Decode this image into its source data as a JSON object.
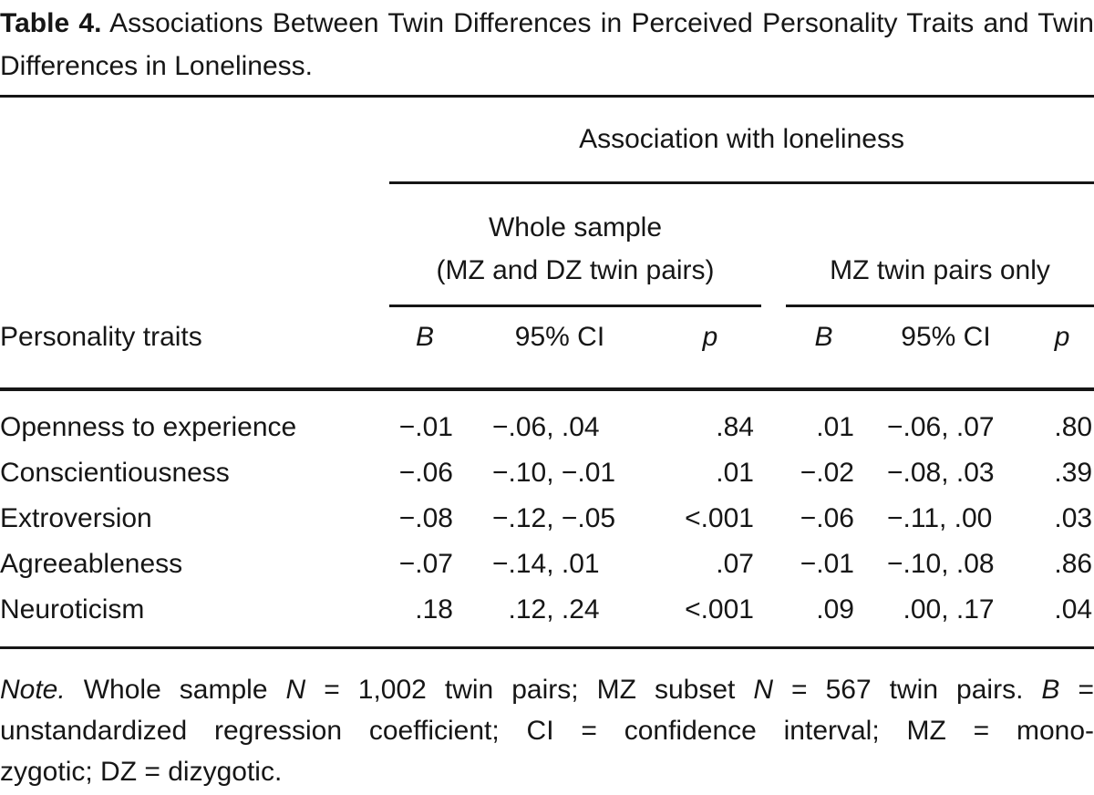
{
  "title": {
    "label": "Table 4.",
    "text": " Associations Between Twin Differences in Perceived Personality Traits and Twin Differences in Loneliness."
  },
  "table": {
    "spanner": "Association with loneliness",
    "groups": {
      "whole_line1": "Whole sample",
      "whole_line2": "(MZ and DZ twin pairs)",
      "mz": "MZ twin pairs only"
    },
    "columns": {
      "trait": "Personality traits",
      "b": "B",
      "ci": "95% CI",
      "p": "p"
    },
    "rows": [
      {
        "trait": "Openness to experience",
        "whole_b": "−.01",
        "whole_ci": "−.06, .04",
        "whole_p": ".84",
        "mz_b": ".01",
        "mz_ci": "−.06, .07",
        "mz_p": ".80"
      },
      {
        "trait": "Conscientiousness",
        "whole_b": "−.06",
        "whole_ci": "−.10, −.01",
        "whole_p": ".01",
        "mz_b": "−.02",
        "mz_ci": "−.08, .03",
        "mz_p": ".39"
      },
      {
        "trait": "Extroversion",
        "whole_b": "−.08",
        "whole_ci": "−.12, −.05",
        "whole_p": "<.001",
        "mz_b": "−.06",
        "mz_ci": "−.11, .00",
        "mz_p": ".03"
      },
      {
        "trait": "Agreeableness",
        "whole_b": "−.07",
        "whole_ci": "−.14, .01",
        "whole_p": ".07",
        "mz_b": "−.01",
        "mz_ci": "−.10, .08",
        "mz_p": ".86"
      },
      {
        "trait": "Neuroticism",
        "whole_b": ".18",
        "whole_ci": ".12, .24",
        "whole_p": "<.001",
        "mz_b": ".09",
        "mz_ci": ".00, .17",
        "mz_p": ".04"
      }
    ]
  },
  "note": {
    "lines": [
      {
        "segments": [
          {
            "t": "Note.",
            "i": true
          },
          {
            "t": " Whole sample ",
            "i": false
          },
          {
            "t": "N",
            "i": true
          },
          {
            "t": " = 1,002 twin pairs; MZ subset ",
            "i": false
          },
          {
            "t": "N",
            "i": true
          },
          {
            "t": " = 567 twin pairs. ",
            "i": false
          },
          {
            "t": "B",
            "i": true
          },
          {
            "t": " =",
            "i": false
          }
        ]
      },
      {
        "segments": [
          {
            "t": "unstandardized regression coefficient; CI = confidence interval; MZ = mono-",
            "i": false
          }
        ]
      },
      {
        "segments": [
          {
            "t": "zygotic; DZ = dizygotic.",
            "i": false
          }
        ]
      }
    ]
  }
}
